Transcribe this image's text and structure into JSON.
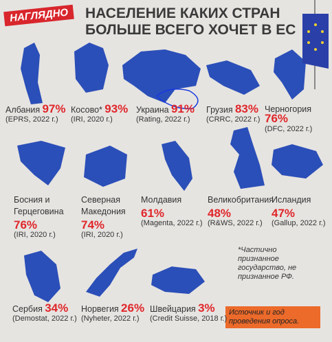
{
  "header": {
    "badge": "НАГЛЯДНО",
    "title_lines": [
      "НАСЕЛЕНИЕ КАКИХ СТРАН",
      "БОЛЬШЕ ВСЕГО ХОЧЕТ В ЕС"
    ]
  },
  "items": [
    {
      "name": "Албания",
      "percent": "97%",
      "source": "(EPRS, 2022 г.)"
    },
    {
      "name": "Косово*",
      "percent": "93%",
      "source": "(IRI, 2020 г.)"
    },
    {
      "name": "Украина",
      "percent": "91%",
      "source": "(Rating, 2022 г.)"
    },
    {
      "name": "Грузия",
      "percent": "83%",
      "source": "(CRRC, 2022 г.)"
    },
    {
      "name": "Черногория",
      "percent": "76%",
      "source": "(DFC, 2022 г.)"
    },
    {
      "name": "Босния и Герцеговина",
      "percent": "76%",
      "source": "(IRI, 2020 г.)"
    },
    {
      "name": "Северная Македония",
      "percent": "74%",
      "source": "(IRI, 2020 г.)"
    },
    {
      "name": "Молдавия",
      "percent": "61%",
      "source": "(Magenta, 2022 г.)"
    },
    {
      "name": "Великобритания",
      "percent": "48%",
      "source": "(R&WS, 2022 г.)"
    },
    {
      "name": "Исландия",
      "percent": "47%",
      "source": "(Gallup, 2022 г.)"
    },
    {
      "name": "Сербия",
      "percent": "34%",
      "source": "(Demostat, 2022 г.)"
    },
    {
      "name": "Норвегия",
      "percent": "26%",
      "source": "(Nyheter, 2022 г.)"
    },
    {
      "name": "Швейцария",
      "percent": "3%",
      "source": "(Credit Suisse, 2018 г.)"
    }
  ],
  "footnote": "*Частично признанное государство, не признанное РФ.",
  "legend": "Источник и год проведения опроса."
}
